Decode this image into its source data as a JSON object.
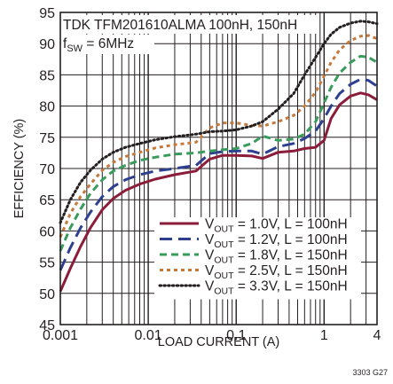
{
  "chart_data": {
    "type": "line",
    "title": "TDK TFM201610ALMA 100nH, 150nH",
    "subtitle": {
      "main": "f",
      "sub": "SW",
      "rest": " = 6MHz"
    },
    "xlabel": "LOAD CURRENT (A)",
    "ylabel": "EFFICIENCY (%)",
    "figure_id": "3303 G27",
    "x_scale": "log",
    "xlim": [
      0.001,
      4
    ],
    "ylim": [
      45,
      95
    ],
    "x_ticks": [
      {
        "value": 0.001,
        "label": "0.001"
      },
      {
        "value": 0.01,
        "label": "0.01"
      },
      {
        "value": 0.1,
        "label": "0.1"
      },
      {
        "value": 1,
        "label": "1"
      },
      {
        "value": 4,
        "label": "4"
      }
    ],
    "y_ticks": [
      45,
      50,
      55,
      60,
      65,
      70,
      75,
      80,
      85,
      90,
      95
    ],
    "grid": true,
    "legend_position": "bottom-right",
    "series": [
      {
        "name": "VOUT = 1.0V, L = 100nH",
        "label_parts": {
          "main": "V",
          "sub": "OUT",
          "rest": " = 1.0V, L = 100nH"
        },
        "color": "#8b1d3a",
        "dash": "solid",
        "points": [
          [
            0.001,
            50.3
          ],
          [
            0.0013,
            54
          ],
          [
            0.0017,
            57.5
          ],
          [
            0.0022,
            60.5
          ],
          [
            0.003,
            63.4
          ],
          [
            0.004,
            65.2
          ],
          [
            0.0055,
            66.5
          ],
          [
            0.008,
            67.5
          ],
          [
            0.012,
            68.3
          ],
          [
            0.02,
            69
          ],
          [
            0.035,
            69.6
          ],
          [
            0.05,
            71.5
          ],
          [
            0.07,
            72.1
          ],
          [
            0.1,
            72.1
          ],
          [
            0.15,
            72
          ],
          [
            0.2,
            71.6
          ],
          [
            0.3,
            72.6
          ],
          [
            0.45,
            72.8
          ],
          [
            0.6,
            73.2
          ],
          [
            0.8,
            73.4
          ],
          [
            1.0,
            74.5
          ],
          [
            1.2,
            78
          ],
          [
            1.5,
            80.2
          ],
          [
            2.0,
            81.6
          ],
          [
            2.6,
            82.1
          ],
          [
            3.2,
            81.8
          ],
          [
            4,
            81
          ]
        ]
      },
      {
        "name": "VOUT = 1.2V, L = 100nH",
        "label_parts": {
          "main": "V",
          "sub": "OUT",
          "rest": " = 1.2V, L = 100nH"
        },
        "color": "#2e3f8f",
        "dash": "long",
        "points": [
          [
            0.001,
            53.7
          ],
          [
            0.0013,
            57.3
          ],
          [
            0.0017,
            60.5
          ],
          [
            0.0022,
            63
          ],
          [
            0.003,
            65.5
          ],
          [
            0.004,
            67.1
          ],
          [
            0.0055,
            68.2
          ],
          [
            0.008,
            69
          ],
          [
            0.012,
            69.6
          ],
          [
            0.02,
            70
          ],
          [
            0.035,
            70.5
          ],
          [
            0.05,
            72.4
          ],
          [
            0.07,
            72.7
          ],
          [
            0.1,
            72.8
          ],
          [
            0.15,
            72.8
          ],
          [
            0.2,
            72.3
          ],
          [
            0.3,
            73.5
          ],
          [
            0.45,
            74
          ],
          [
            0.6,
            74.8
          ],
          [
            0.8,
            76
          ],
          [
            1.0,
            78
          ],
          [
            1.2,
            80
          ],
          [
            1.5,
            82
          ],
          [
            2.0,
            83.5
          ],
          [
            2.6,
            84.3
          ],
          [
            3.2,
            84.1
          ],
          [
            4,
            83.2
          ]
        ]
      },
      {
        "name": "VOUT = 1.8V, L = 150nH",
        "label_parts": {
          "main": "V",
          "sub": "OUT",
          "rest": " = 1.8V, L = 150nH"
        },
        "color": "#3a9c5c",
        "dash": "medium",
        "points": [
          [
            0.001,
            56.8
          ],
          [
            0.0013,
            60.5
          ],
          [
            0.0017,
            63.5
          ],
          [
            0.0022,
            66
          ],
          [
            0.003,
            68.2
          ],
          [
            0.004,
            69.6
          ],
          [
            0.0055,
            70.5
          ],
          [
            0.008,
            71.3
          ],
          [
            0.012,
            71.8
          ],
          [
            0.02,
            72.3
          ],
          [
            0.035,
            72.5
          ],
          [
            0.05,
            72.8
          ],
          [
            0.07,
            73
          ],
          [
            0.1,
            73.2
          ],
          [
            0.15,
            74
          ],
          [
            0.2,
            75.2
          ],
          [
            0.3,
            74.5
          ],
          [
            0.45,
            74.7
          ],
          [
            0.6,
            75.5
          ],
          [
            0.8,
            77.5
          ],
          [
            1.0,
            80.5
          ],
          [
            1.2,
            83
          ],
          [
            1.5,
            85.3
          ],
          [
            2.0,
            87
          ],
          [
            2.6,
            88
          ],
          [
            3.2,
            87.8
          ],
          [
            4,
            87
          ]
        ]
      },
      {
        "name": "VOUT = 2.5V, L = 150nH",
        "label_parts": {
          "main": "V",
          "sub": "OUT",
          "rest": " = 2.5V, L = 150nH"
        },
        "color": "#c57a3c",
        "dash": "short",
        "points": [
          [
            0.001,
            59
          ],
          [
            0.0013,
            62.8
          ],
          [
            0.0017,
            65.5
          ],
          [
            0.0022,
            67.5
          ],
          [
            0.003,
            69.7
          ],
          [
            0.004,
            71
          ],
          [
            0.0055,
            71.9
          ],
          [
            0.008,
            72.6
          ],
          [
            0.012,
            73.3
          ],
          [
            0.02,
            73.8
          ],
          [
            0.035,
            74.2
          ],
          [
            0.05,
            76.5
          ],
          [
            0.07,
            77.3
          ],
          [
            0.1,
            77.3
          ],
          [
            0.15,
            76.9
          ],
          [
            0.2,
            76.8
          ],
          [
            0.3,
            77.5
          ],
          [
            0.45,
            78.5
          ],
          [
            0.6,
            80
          ],
          [
            0.8,
            82.2
          ],
          [
            1.0,
            84.8
          ],
          [
            1.2,
            87
          ],
          [
            1.5,
            89
          ],
          [
            2.0,
            90.5
          ],
          [
            2.6,
            91.2
          ],
          [
            3.2,
            91.3
          ],
          [
            4,
            90.8
          ]
        ]
      },
      {
        "name": "VOUT = 3.3V, L = 150nH",
        "label_parts": {
          "main": "V",
          "sub": "OUT",
          "rest": " = 3.3V, L = 150nH"
        },
        "color": "#231f20",
        "dash": "dotted",
        "points": [
          [
            0.001,
            61.3
          ],
          [
            0.0013,
            65
          ],
          [
            0.0017,
            67.8
          ],
          [
            0.0022,
            69.7
          ],
          [
            0.003,
            71.5
          ],
          [
            0.004,
            72.6
          ],
          [
            0.0055,
            73.4
          ],
          [
            0.008,
            74
          ],
          [
            0.012,
            74.6
          ],
          [
            0.02,
            75.1
          ],
          [
            0.035,
            75.5
          ],
          [
            0.05,
            75.9
          ],
          [
            0.07,
            76
          ],
          [
            0.1,
            76.2
          ],
          [
            0.15,
            76.8
          ],
          [
            0.2,
            77.5
          ],
          [
            0.3,
            79.5
          ],
          [
            0.45,
            82
          ],
          [
            0.6,
            85
          ],
          [
            0.8,
            87.8
          ],
          [
            1.0,
            90
          ],
          [
            1.2,
            91.5
          ],
          [
            1.5,
            92.6
          ],
          [
            2.0,
            93.3
          ],
          [
            2.6,
            93.6
          ],
          [
            3.2,
            93.5
          ],
          [
            4,
            93.2
          ]
        ]
      }
    ]
  }
}
